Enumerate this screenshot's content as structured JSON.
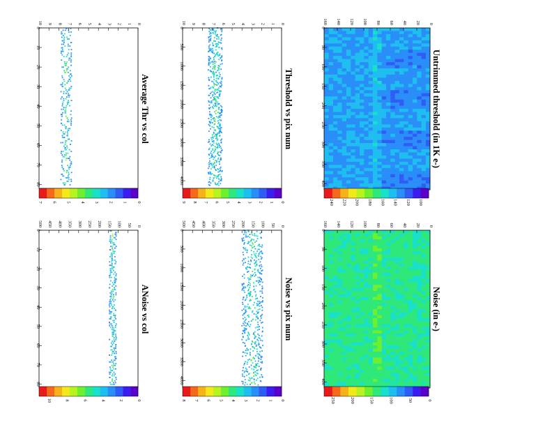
{
  "page": {
    "rotation": "90deg clockwise (landscape page shown rotated)"
  },
  "colors": {
    "palette": [
      "#5b00c8",
      "#3a1ef0",
      "#2f5cf5",
      "#2a8ef8",
      "#1fbef0",
      "#19e0c8",
      "#2ee87a",
      "#6ef02f",
      "#b8f21f",
      "#f2e81a",
      "#f5b21a",
      "#f56a1a",
      "#e81a1a"
    ],
    "frame": "#000000"
  },
  "chart_data": [
    {
      "id": "untrimmed-threshold",
      "type": "heatmap",
      "title": "Untrimmed threshold (in 1K e-)",
      "x_ticks": [
        "0",
        "50",
        "100",
        "150",
        "200",
        "250",
        "300",
        "350",
        "400"
      ],
      "y_ticks": [
        "0",
        "20",
        "40",
        "60",
        "80",
        "100",
        "120",
        "140",
        "160"
      ],
      "xlim": [
        0,
        416
      ],
      "ylim": [
        0,
        160
      ],
      "colorbar": {
        "ticks": [
          "100",
          "120",
          "140",
          "160",
          "180",
          "200",
          "220",
          "240"
        ],
        "range": [
          86,
          250
        ]
      },
      "description_level": 150
    },
    {
      "id": "noise",
      "type": "heatmap",
      "title": "Noise (in e-)",
      "x_ticks": [
        "0",
        "50",
        "100",
        "150",
        "200",
        "250",
        "300",
        "350",
        "400"
      ],
      "y_ticks": [
        "0",
        "20",
        "40",
        "60",
        "80",
        "100",
        "120",
        "140",
        "160"
      ],
      "xlim": [
        0,
        416
      ],
      "ylim": [
        0,
        160
      ],
      "colorbar": {
        "ticks": [
          "0",
          "50",
          "100",
          "150",
          "200",
          "250"
        ],
        "range": [
          0,
          270
        ]
      },
      "description_level": 140
    },
    {
      "id": "threshold-vs-pix-num",
      "type": "scatter",
      "title": "Threshold vs pix num",
      "x_ticks": [
        "0",
        "500",
        "1000",
        "1500",
        "2000",
        "2500",
        "3000",
        "3500",
        "4000"
      ],
      "y_ticks": [
        "0",
        "1",
        "2",
        "3",
        "4",
        "5",
        "6",
        "7",
        "8",
        "9",
        "10"
      ],
      "xlim": [
        0,
        4200
      ],
      "ylim": [
        0,
        10
      ],
      "band": [
        6.0,
        7.4
      ],
      "colorbar": {
        "ticks": [
          "0",
          "1",
          "2",
          "3",
          "4",
          "5",
          "6",
          "7",
          "8",
          "9"
        ],
        "range": [
          0,
          9
        ]
      }
    },
    {
      "id": "noise-vs-pix-num",
      "type": "scatter",
      "title": "Noise vs pix num",
      "x_ticks": [
        "0",
        "500",
        "1000",
        "1500",
        "2000",
        "2500",
        "3000",
        "3500",
        "4000"
      ],
      "y_ticks": [
        "0",
        "50",
        "100",
        "150",
        "200",
        "250",
        "300",
        "350",
        "400",
        "450",
        "500"
      ],
      "xlim": [
        0,
        4200
      ],
      "ylim": [
        0,
        500
      ],
      "band": [
        95,
        200
      ],
      "colorbar": {
        "ticks": [
          "0",
          "1",
          "2",
          "3",
          "4",
          "5",
          "6",
          "7",
          "8"
        ],
        "range": [
          0,
          8
        ]
      }
    },
    {
      "id": "average-thr-vs-col",
      "type": "scatter",
      "title": "Average Thr vs col",
      "x_ticks": [
        "0",
        "10",
        "20",
        "30",
        "40",
        "50",
        "60",
        "70",
        "80"
      ],
      "y_ticks": [
        "0",
        "1",
        "2",
        "3",
        "4",
        "5",
        "6",
        "7",
        "8",
        "9",
        "10"
      ],
      "xlim": [
        0,
        82
      ],
      "ylim": [
        0,
        10
      ],
      "band": [
        6.7,
        7.8
      ],
      "colorbar": {
        "ticks": [
          "0",
          "1",
          "2",
          "3",
          "4",
          "5",
          "6",
          "7"
        ],
        "range": [
          0,
          7
        ]
      }
    },
    {
      "id": "anoise-vs-col",
      "type": "scatter",
      "title": "ANoise vs col",
      "x_ticks": [
        "0",
        "10",
        "20",
        "30",
        "40",
        "50",
        "60",
        "70",
        "80"
      ],
      "y_ticks": [
        "0",
        "50",
        "100",
        "150",
        "200",
        "250",
        "300",
        "350",
        "400",
        "450",
        "500"
      ],
      "xlim": [
        0,
        82
      ],
      "ylim": [
        0,
        500
      ],
      "band": [
        110,
        145
      ],
      "colorbar": {
        "ticks": [
          "0",
          "2",
          "4",
          "6",
          "8",
          "10"
        ],
        "range": [
          0,
          11
        ]
      }
    }
  ]
}
